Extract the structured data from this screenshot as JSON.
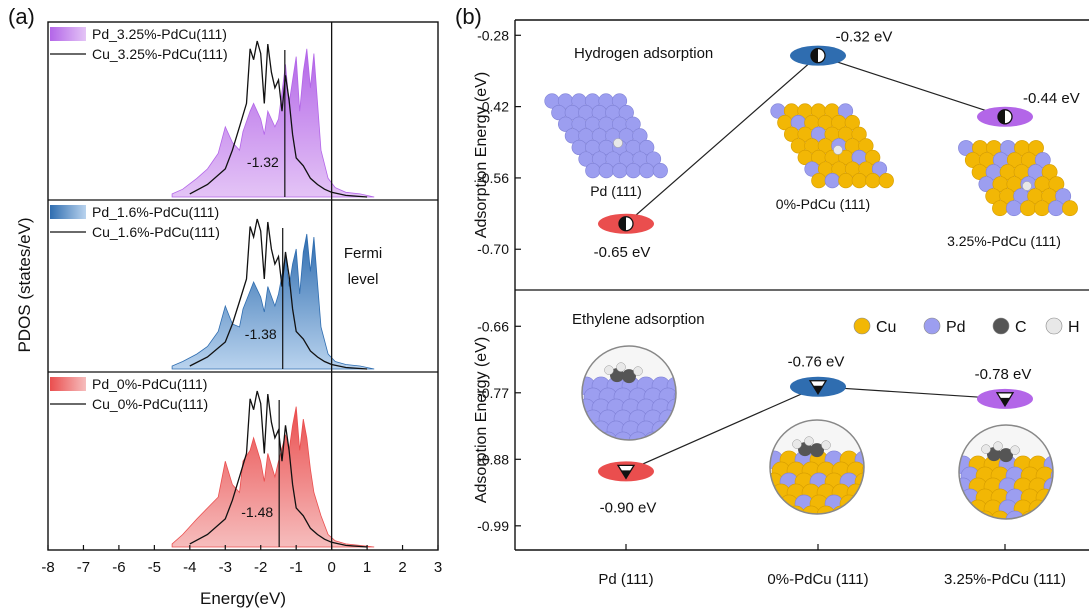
{
  "colors": {
    "purple": "#b366e8",
    "purple_light": "#e4c4f6",
    "blue": "#2f6db0",
    "blue_light": "#b9d3ee",
    "red": "#ea4e4e",
    "red_light": "#f6bdbd",
    "cu_atom": "#f2b705",
    "pd_atom": "#9c9ef0",
    "c_atom": "#555555",
    "h_atom": "#e8e8e8",
    "line": "#111111"
  },
  "panel_a": {
    "letter": "(a)",
    "ylabel": "PDOS (states/eV)",
    "xlabel": "Energy(eV)",
    "fermi_label_1": "Fermi",
    "fermi_label_2": "level"
  },
  "panel_b": {
    "letter": "(b)",
    "top_title": "Hydrogen adsorption",
    "bottom_title": "Ethylene adsorption",
    "ylabel_top": "Adsorption Energy (eV)",
    "ylabel_bottom": "Adsorption Energy (eV)",
    "structure_labels": [
      "Pd (111)",
      "0%-PdCu (111)",
      "3.25%-PdCu (111)"
    ],
    "legend": [
      "Cu",
      "Pd",
      "C",
      "H"
    ]
  },
  "chart_data": [
    {
      "type": "area",
      "panel": "a",
      "x_ticks": [
        "-8",
        "-7",
        "-6",
        "-5",
        "-4",
        "-3",
        "-2",
        "-1",
        "0",
        "1",
        "2",
        "3"
      ],
      "xlim": [
        -8,
        3
      ],
      "subplots": [
        {
          "series": [
            {
              "name": "Pd_3.25%-PdCu(111)",
              "color": "purple",
              "kind": "area",
              "x": [
                -4.5,
                -4.2,
                -3.8,
                -3.5,
                -3.2,
                -3.0,
                -2.8,
                -2.6,
                -2.5,
                -2.3,
                -2.2,
                -2.0,
                -1.9,
                -1.8,
                -1.6,
                -1.5,
                -1.3,
                -1.2,
                -1.1,
                -1.0,
                -0.9,
                -0.8,
                -0.7,
                -0.6,
                -0.5,
                -0.3,
                -0.1,
                0.1,
                0.4,
                0.8,
                1.2
              ],
              "y": [
                0.02,
                0.05,
                0.12,
                0.18,
                0.28,
                0.45,
                0.35,
                0.3,
                0.42,
                0.55,
                0.6,
                0.5,
                0.4,
                0.55,
                0.45,
                0.5,
                0.85,
                0.6,
                0.75,
                0.9,
                0.55,
                0.8,
                0.95,
                0.7,
                0.92,
                0.3,
                0.12,
                0.06,
                0.03,
                0.02,
                0.0
              ]
            },
            {
              "name": "Cu_3.25%-PdCu(111)",
              "color": "line",
              "kind": "line",
              "x": [
                -4.0,
                -3.5,
                -3.0,
                -2.8,
                -2.6,
                -2.4,
                -2.3,
                -2.2,
                -2.1,
                -2.0,
                -1.9,
                -1.8,
                -1.7,
                -1.6,
                -1.5,
                -1.4,
                -1.3,
                -1.2,
                -1.1,
                -1.0,
                -0.8,
                -0.6,
                -0.4,
                -0.2,
                0.0,
                0.4,
                1.0
              ],
              "y": [
                0.02,
                0.08,
                0.18,
                0.3,
                0.45,
                0.6,
                0.95,
                0.88,
                1.0,
                0.92,
                0.6,
                0.98,
                0.8,
                0.7,
                0.75,
                0.55,
                0.78,
                0.62,
                0.4,
                0.25,
                0.2,
                0.12,
                0.08,
                0.05,
                0.03,
                0.01,
                0.0
              ]
            }
          ],
          "annotation": "-1.32",
          "center": -1.32
        },
        {
          "series": [
            {
              "name": "Pd_1.6%-PdCu(111)",
              "color": "blue",
              "kind": "area",
              "x": [
                -4.5,
                -4.2,
                -3.8,
                -3.5,
                -3.2,
                -3.0,
                -2.8,
                -2.6,
                -2.5,
                -2.3,
                -2.2,
                -2.0,
                -1.9,
                -1.8,
                -1.6,
                -1.5,
                -1.3,
                -1.2,
                -1.1,
                -1.0,
                -0.9,
                -0.8,
                -0.7,
                -0.6,
                -0.5,
                -0.3,
                -0.1,
                0.1,
                0.4,
                0.8,
                1.2
              ],
              "y": [
                0.02,
                0.05,
                0.1,
                0.15,
                0.25,
                0.42,
                0.3,
                0.28,
                0.4,
                0.52,
                0.58,
                0.48,
                0.38,
                0.55,
                0.42,
                0.5,
                0.75,
                0.55,
                0.7,
                0.8,
                0.5,
                0.78,
                0.9,
                0.65,
                0.88,
                0.28,
                0.1,
                0.05,
                0.03,
                0.02,
                0.0
              ]
            },
            {
              "name": "Cu_1.6%-PdCu(111)",
              "color": "line",
              "kind": "line",
              "x": [
                -4.0,
                -3.5,
                -3.0,
                -2.8,
                -2.6,
                -2.4,
                -2.3,
                -2.2,
                -2.1,
                -2.0,
                -1.9,
                -1.8,
                -1.7,
                -1.6,
                -1.5,
                -1.4,
                -1.3,
                -1.2,
                -1.1,
                -1.0,
                -0.8,
                -0.6,
                -0.4,
                -0.2,
                0.0,
                0.4,
                1.0
              ],
              "y": [
                0.02,
                0.08,
                0.18,
                0.3,
                0.45,
                0.6,
                0.95,
                0.88,
                1.0,
                0.92,
                0.6,
                0.98,
                0.8,
                0.7,
                0.75,
                0.55,
                0.78,
                0.62,
                0.4,
                0.25,
                0.2,
                0.12,
                0.08,
                0.05,
                0.03,
                0.01,
                0.0
              ]
            }
          ],
          "annotation": "-1.38",
          "center": -1.38
        },
        {
          "series": [
            {
              "name": "Pd_0%-PdCu(111)",
              "color": "red",
              "kind": "area",
              "x": [
                -4.5,
                -4.2,
                -3.8,
                -3.5,
                -3.2,
                -3.0,
                -2.8,
                -2.6,
                -2.5,
                -2.3,
                -2.2,
                -2.0,
                -1.9,
                -1.8,
                -1.6,
                -1.5,
                -1.3,
                -1.2,
                -1.1,
                -1.0,
                -0.9,
                -0.8,
                -0.7,
                -0.6,
                -0.5,
                -0.3,
                -0.1,
                0.1,
                0.4,
                0.8,
                1.2
              ],
              "y": [
                0.02,
                0.08,
                0.18,
                0.25,
                0.32,
                0.55,
                0.4,
                0.35,
                0.55,
                0.62,
                0.7,
                0.55,
                0.42,
                0.6,
                0.45,
                0.55,
                0.72,
                0.62,
                0.78,
                0.9,
                0.62,
                0.82,
                0.7,
                0.5,
                0.35,
                0.2,
                0.08,
                0.04,
                0.02,
                0.01,
                0.0
              ]
            },
            {
              "name": "Cu_0%-PdCu(111)",
              "color": "line",
              "kind": "line",
              "x": [
                -4.0,
                -3.5,
                -3.0,
                -2.8,
                -2.6,
                -2.4,
                -2.3,
                -2.2,
                -2.1,
                -2.0,
                -1.9,
                -1.8,
                -1.7,
                -1.6,
                -1.5,
                -1.4,
                -1.3,
                -1.2,
                -1.1,
                -1.0,
                -0.8,
                -0.6,
                -0.4,
                -0.2,
                0.0,
                0.4,
                1.0
              ],
              "y": [
                0.02,
                0.08,
                0.18,
                0.3,
                0.45,
                0.6,
                0.95,
                0.88,
                1.0,
                0.92,
                0.6,
                0.98,
                0.8,
                0.7,
                0.75,
                0.55,
                0.78,
                0.62,
                0.4,
                0.25,
                0.2,
                0.12,
                0.08,
                0.05,
                0.03,
                0.01,
                0.0
              ]
            }
          ],
          "annotation": "-1.48",
          "center": -1.48
        }
      ]
    },
    {
      "type": "line",
      "panel": "b-top",
      "title": "Hydrogen adsorption",
      "ylabel": "Adsorption Energy (eV)",
      "y_ticks": [
        "-0.28",
        "-0.42",
        "-0.56",
        "-0.70"
      ],
      "ylim": [
        -0.78,
        -0.25
      ],
      "categories": [
        "Pd (111)",
        "0%-PdCu (111)",
        "3.25%-PdCu (111)"
      ],
      "values": [
        -0.65,
        -0.32,
        -0.44
      ],
      "value_labels": [
        "-0.65 eV",
        "-0.32 eV",
        "-0.44 eV"
      ],
      "marker_colors": [
        "red",
        "blue",
        "purple"
      ]
    },
    {
      "type": "line",
      "panel": "b-bottom",
      "title": "Ethylene adsorption",
      "ylabel": "Adsorption Energy (eV)",
      "y_ticks": [
        "-0.66",
        "-0.77",
        "-0.88",
        "-0.99"
      ],
      "ylim": [
        -1.03,
        -0.6
      ],
      "categories": [
        "Pd (111)",
        "0%-PdCu (111)",
        "3.25%-PdCu (111)"
      ],
      "values": [
        -0.9,
        -0.76,
        -0.78
      ],
      "value_labels": [
        "-0.90 eV",
        "-0.76 eV",
        "-0.78 eV"
      ],
      "marker_colors": [
        "red",
        "blue",
        "purple"
      ]
    }
  ]
}
